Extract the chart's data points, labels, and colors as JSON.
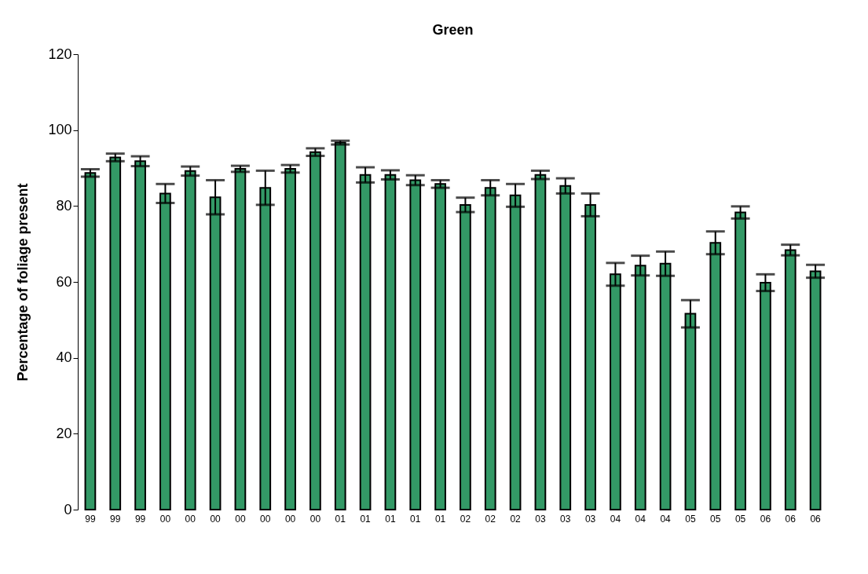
{
  "chart_data": {
    "type": "bar",
    "title": "Green",
    "ylabel": "Percentage of foliage present",
    "categories": [
      "99",
      "99",
      "99",
      "00",
      "00",
      "00",
      "00",
      "00",
      "00",
      "00",
      "01",
      "01",
      "01",
      "01",
      "01",
      "02",
      "02",
      "02",
      "03",
      "03",
      "03",
      "04",
      "04",
      "04",
      "05",
      "05",
      "05",
      "06",
      "06",
      "06"
    ],
    "values": [
      88.7,
      92.8,
      91.8,
      83.3,
      89.2,
      82.3,
      89.8,
      84.8,
      89.8,
      94.2,
      96.7,
      88.2,
      88.2,
      86.8,
      85.8,
      80.3,
      84.8,
      82.8,
      88.2,
      85.3,
      80.3,
      62,
      64.3,
      64.8,
      51.6,
      70.3,
      78.3,
      59.8,
      68.4,
      62.8
    ],
    "errors": [
      1,
      1,
      1.3,
      2.5,
      1.2,
      4.5,
      0.8,
      4.5,
      1,
      1,
      0.5,
      2,
      1.2,
      1.3,
      1,
      1.9,
      2,
      3,
      1.1,
      2,
      3,
      3,
      2.6,
      3.2,
      3.6,
      3,
      1.6,
      2.2,
      1.4,
      1.7
    ],
    "color": "#339966",
    "ylim": [
      0,
      120
    ],
    "yticks": [
      0,
      20,
      40,
      60,
      80,
      100,
      120
    ],
    "grid": false
  }
}
